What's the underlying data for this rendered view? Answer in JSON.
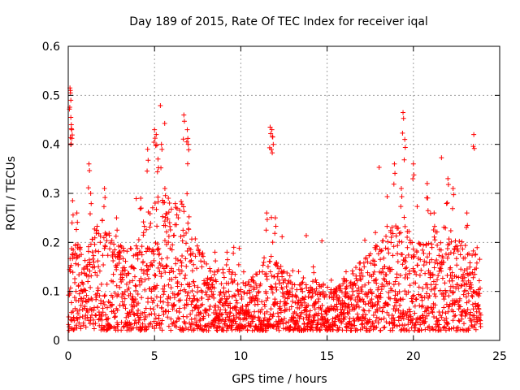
{
  "chart_data": {
    "type": "scatter",
    "title": "Day 189 of 2015, Rate Of TEC Index for receiver iqal",
    "xlabel": "GPS time / hours",
    "ylabel": "ROTI / TECUs",
    "xlim": [
      0,
      25
    ],
    "ylim": [
      0,
      0.6
    ],
    "xticks": [
      0,
      5,
      10,
      15,
      20,
      25
    ],
    "xtick_labels": [
      "0",
      "5",
      "10",
      "15",
      "20",
      "25"
    ],
    "yticks": [
      0,
      0.1,
      0.2,
      0.3,
      0.4,
      0.5,
      0.6
    ],
    "ytick_labels": [
      "0",
      "0.1",
      "0.2",
      "0.3",
      "0.4",
      "0.5",
      "0.6"
    ],
    "grid": true,
    "marker": "plus",
    "series": [
      {
        "name": "ROTI",
        "color": "#ff0000",
        "x_range": [
          0,
          23.9
        ],
        "sample_interval_hours": 0.02,
        "baseline_envelope": [
          [
            0,
            0.09
          ],
          [
            0.5,
            0.1
          ],
          [
            1,
            0.09
          ],
          [
            1.5,
            0.12
          ],
          [
            2,
            0.13
          ],
          [
            2.5,
            0.11
          ],
          [
            3,
            0.1
          ],
          [
            3.5,
            0.09
          ],
          [
            4,
            0.1
          ],
          [
            4.5,
            0.14
          ],
          [
            5,
            0.15
          ],
          [
            5.5,
            0.16
          ],
          [
            6,
            0.14
          ],
          [
            6.5,
            0.15
          ],
          [
            7,
            0.13
          ],
          [
            7.5,
            0.1
          ],
          [
            8,
            0.08
          ],
          [
            8.5,
            0.07
          ],
          [
            9,
            0.07
          ],
          [
            9.5,
            0.07
          ],
          [
            10,
            0.06
          ],
          [
            10.5,
            0.06
          ],
          [
            11,
            0.07
          ],
          [
            11.5,
            0.09
          ],
          [
            12,
            0.08
          ],
          [
            12.5,
            0.07
          ],
          [
            13,
            0.06
          ],
          [
            13.5,
            0.06
          ],
          [
            14,
            0.06
          ],
          [
            14.5,
            0.06
          ],
          [
            15,
            0.05
          ],
          [
            15.5,
            0.05
          ],
          [
            16,
            0.06
          ],
          [
            16.5,
            0.07
          ],
          [
            17,
            0.08
          ],
          [
            17.5,
            0.09
          ],
          [
            18,
            0.1
          ],
          [
            18.5,
            0.11
          ],
          [
            19,
            0.12
          ],
          [
            19.5,
            0.12
          ],
          [
            20,
            0.1
          ],
          [
            20.5,
            0.1
          ],
          [
            21,
            0.11
          ],
          [
            21.5,
            0.12
          ],
          [
            22,
            0.12
          ],
          [
            22.5,
            0.11
          ],
          [
            23,
            0.1
          ],
          [
            23.5,
            0.09
          ],
          [
            23.9,
            0.08
          ]
        ],
        "peak_values": [
          [
            0.1,
            0.515
          ],
          [
            0.12,
            0.51
          ],
          [
            0.15,
            0.455
          ],
          [
            0.18,
            0.44
          ],
          [
            0.2,
            0.43
          ],
          [
            0.25,
            0.285
          ],
          [
            0.5,
            0.26
          ],
          [
            1.2,
            0.36
          ],
          [
            1.3,
            0.3
          ],
          [
            2.1,
            0.31
          ],
          [
            2.8,
            0.25
          ],
          [
            4.2,
            0.29
          ],
          [
            4.6,
            0.39
          ],
          [
            5.0,
            0.43
          ],
          [
            5.1,
            0.42
          ],
          [
            5.2,
            0.37
          ],
          [
            5.4,
            0.4
          ],
          [
            5.6,
            0.31
          ],
          [
            5.8,
            0.29
          ],
          [
            6.7,
            0.46
          ],
          [
            6.9,
            0.43
          ],
          [
            6.95,
            0.4
          ],
          [
            8.5,
            0.18
          ],
          [
            9.2,
            0.18
          ],
          [
            11.5,
            0.26
          ],
          [
            11.7,
            0.435
          ],
          [
            11.8,
            0.43
          ],
          [
            11.85,
            0.415
          ],
          [
            12.0,
            0.25
          ],
          [
            14.2,
            0.15
          ],
          [
            16.1,
            0.14
          ],
          [
            17.8,
            0.22
          ],
          [
            18.9,
            0.36
          ],
          [
            19.3,
            0.31
          ],
          [
            19.4,
            0.465
          ],
          [
            19.5,
            0.41
          ],
          [
            20.0,
            0.36
          ],
          [
            20.8,
            0.32
          ],
          [
            21.2,
            0.26
          ],
          [
            22.0,
            0.33
          ],
          [
            22.3,
            0.31
          ],
          [
            23.1,
            0.26
          ],
          [
            23.5,
            0.42
          ]
        ]
      }
    ]
  }
}
